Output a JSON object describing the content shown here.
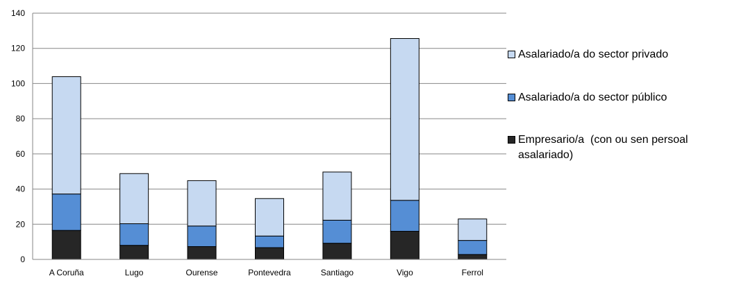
{
  "chart_data": {
    "type": "bar",
    "stacked": true,
    "categories": [
      "A Coruña",
      "Lugo",
      "Ourense",
      "Pontevedra",
      "Santiago",
      "Vigo",
      "Ferrol"
    ],
    "series": [
      {
        "name": "Empresario/a  (con ou sen persoal asalariado)",
        "color": "#262626",
        "values": [
          16.5,
          8,
          7.3,
          6.7,
          9.2,
          16,
          2.8
        ]
      },
      {
        "name": "Asalariado/a do sector público",
        "color": "#558ED5",
        "values": [
          20.7,
          12.3,
          11.7,
          6.6,
          13.1,
          17.6,
          8
        ]
      },
      {
        "name": "Asalariado/a do sector privado",
        "color": "#C6D9F1",
        "values": [
          66.7,
          28.5,
          25.8,
          21.3,
          27.4,
          92,
          12.2
        ]
      }
    ],
    "ylim": [
      0,
      140
    ],
    "yticks": [
      "0",
      "20",
      "40",
      "60",
      "80",
      "100",
      "120",
      "140"
    ],
    "grid": true,
    "legend_position": "right"
  }
}
